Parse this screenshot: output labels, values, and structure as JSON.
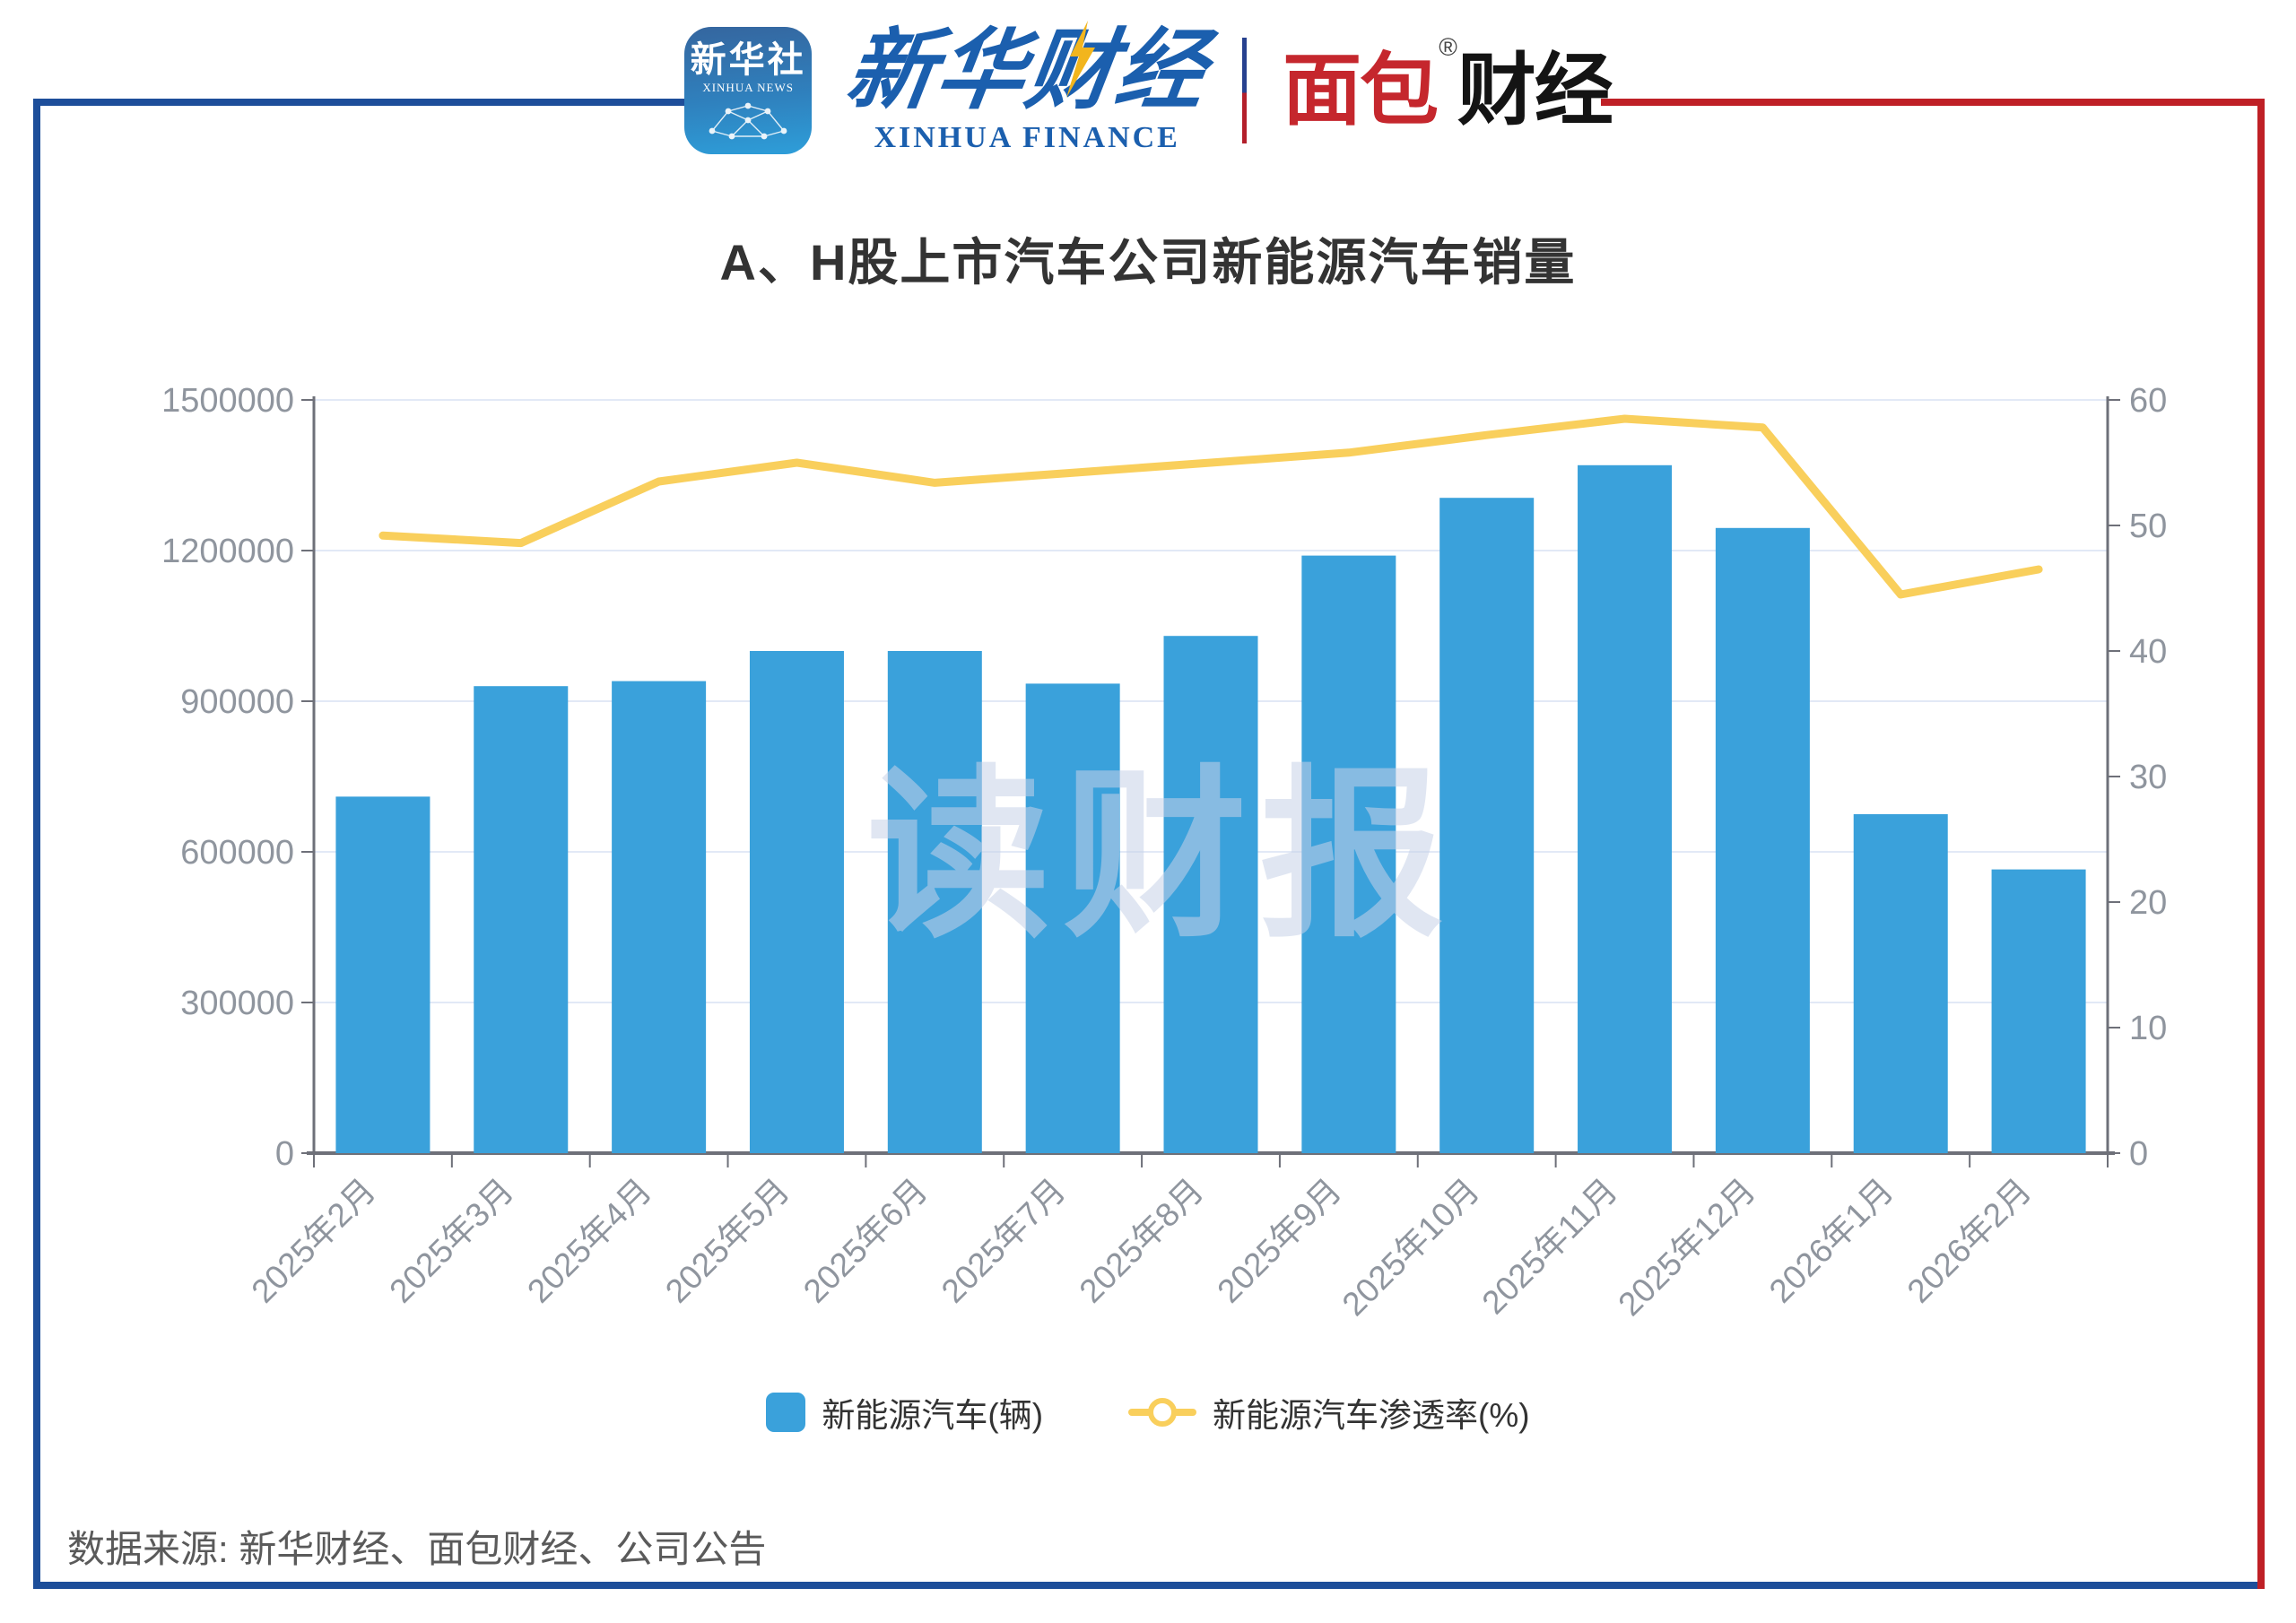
{
  "header": {
    "xinhua_news": {
      "cn": "新华社",
      "en": "XINHUA NEWS"
    },
    "xinhua_finance": {
      "cn": "新华财经",
      "en": "XINHUA FINANCE"
    },
    "mianbao": {
      "red": "面包",
      "black": "财经",
      "reg": "®"
    }
  },
  "title": "A、H股上市汽车公司新能源汽车销量",
  "watermark": "读财报",
  "source": "数据来源: 新华财经、面包财经、公司公告",
  "colors": {
    "frame_blue": "#1d4e9a",
    "frame_red": "#bf2026",
    "bar": "#3aa1db",
    "line": "#f9cf5c",
    "grid": "#e2e9f6",
    "axis": "#6e7079",
    "axis_label": "#8f959e",
    "watermark": "#c7d2e8"
  },
  "chart_data": {
    "type": "bar",
    "title": "A、H股上市汽车公司新能源汽车销量",
    "categories": [
      "2025年2月",
      "2025年3月",
      "2025年4月",
      "2025年5月",
      "2025年6月",
      "2025年7月",
      "2025年8月",
      "2025年9月",
      "2025年10月",
      "2025年11月",
      "2025年12月",
      "2026年1月",
      "2026年2月"
    ],
    "series": [
      {
        "name": "新能源汽车(辆)",
        "type": "bar",
        "axis": "left",
        "color": "#3aa1db",
        "values": [
          710000,
          930000,
          940000,
          1000000,
          1000000,
          935000,
          1030000,
          1190000,
          1305000,
          1370000,
          1245000,
          675000,
          565000
        ]
      },
      {
        "name": "新能源汽车渗透率(%)",
        "type": "line",
        "axis": "right",
        "color": "#f9cf5c",
        "values": [
          49.2,
          48.6,
          53.5,
          55.0,
          53.4,
          54.2,
          55.0,
          55.8,
          57.2,
          58.5,
          57.8,
          44.5,
          46.5
        ]
      }
    ],
    "left_axis": {
      "min": 0,
      "max": 1500000,
      "ticks": [
        0,
        300000,
        600000,
        900000,
        1200000,
        1500000
      ]
    },
    "right_axis": {
      "min": 0,
      "max": 60,
      "ticks": [
        0,
        10,
        20,
        30,
        40,
        50,
        60
      ]
    },
    "grid": "horizontal",
    "legend_position": "bottom"
  }
}
